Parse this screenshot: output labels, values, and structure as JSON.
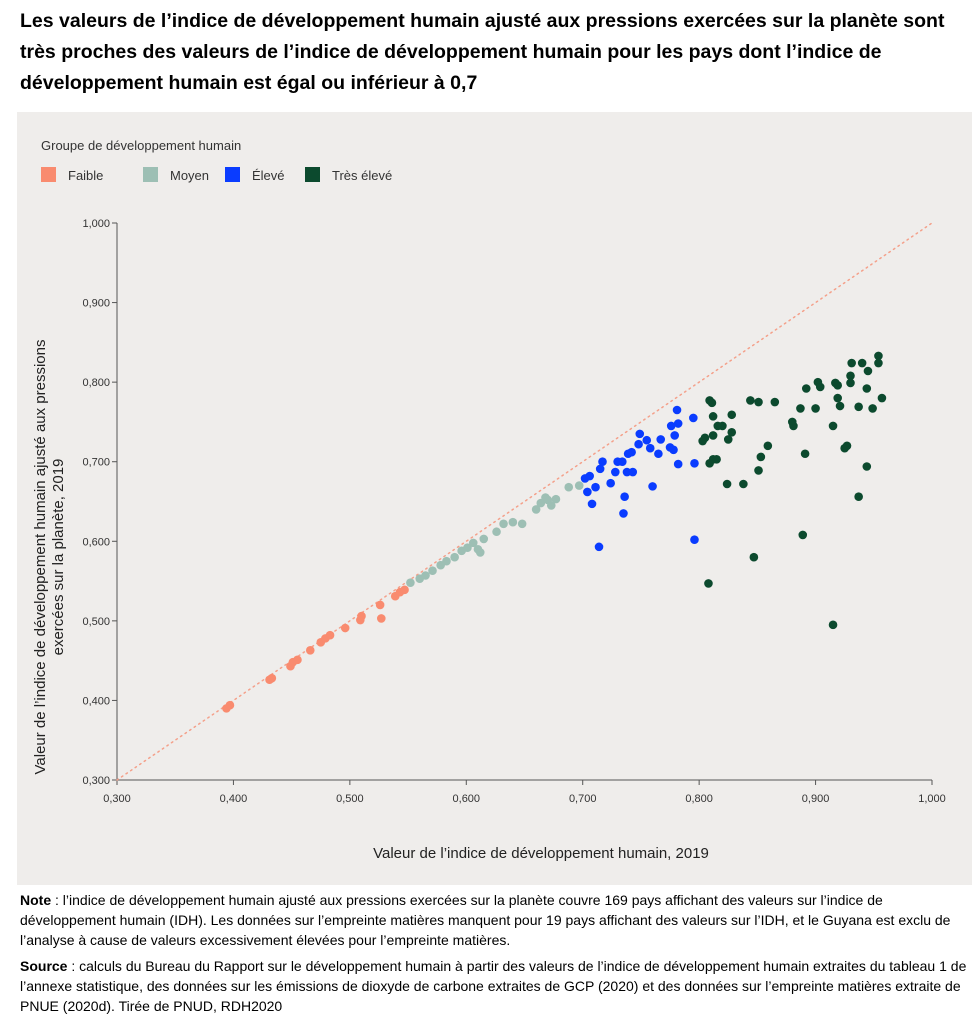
{
  "title": "Les valeurs de l’indice de développement humain ajusté aux pressions exercées sur la planète sont très proches des valeurs de l’indice de développement humain pour les pays dont l’indice de développement humain est égal ou inférieur à 0,7",
  "notes": {
    "note_label": "Note",
    "note_text": " : l’indice de développement humain ajusté aux pressions exercées sur la planète couvre 169 pays affichant des valeurs sur l’indice de développement humain (IDH). Les données sur l’empreinte matières manquent pour 19 pays affichant des valeurs sur l’IDH, et le Guyana est exclu de l’analyse à cause de valeurs excessivement élevées pour l’empreinte matières.",
    "source_label": "Source",
    "source_text": " : calculs du Bureau du Rapport sur le développement humain à partir des valeurs de l’indice de développement humain extraites du tableau 1 de l’annexe statistique, des données sur les émissions de dioxyde de carbone extraites de GCP (2020) et des données sur l’empreinte matières extraite de PNUE (2020d). Tirée de PNUD, RDH2020"
  },
  "chart_data": {
    "type": "scatter",
    "legend_title": "Groupe de développement humain",
    "legend_position": "top-left",
    "xlabel": "Valeur de l’indice de développement humain, 2019",
    "ylabel_lines": [
      "Valeur de l’indice de développement humain ajusté aux pressions",
      "exercées sur la planète, 2019"
    ],
    "xlim": [
      0.3,
      1.0
    ],
    "ylim": [
      0.3,
      1.0
    ],
    "x_ticks": [
      "0,300",
      "0,400",
      "0,500",
      "0,600",
      "0,700",
      "0,800",
      "0,900",
      "1,000"
    ],
    "y_ticks": [
      "0,300",
      "0,400",
      "0,500",
      "0,600",
      "0,700",
      "0,800",
      "0,900",
      "1,000"
    ],
    "grid": false,
    "reference_line": "y = x (dotted)",
    "reference_color": "#f4a08a",
    "series": [
      {
        "name": "Faible",
        "color": "#f98b6f",
        "points": [
          [
            0.394,
            0.39
          ],
          [
            0.397,
            0.394
          ],
          [
            0.431,
            0.426
          ],
          [
            0.433,
            0.428
          ],
          [
            0.449,
            0.443
          ],
          [
            0.451,
            0.448
          ],
          [
            0.455,
            0.451
          ],
          [
            0.466,
            0.463
          ],
          [
            0.475,
            0.473
          ],
          [
            0.479,
            0.478
          ],
          [
            0.483,
            0.482
          ],
          [
            0.496,
            0.491
          ],
          [
            0.509,
            0.501
          ],
          [
            0.51,
            0.506
          ],
          [
            0.527,
            0.503
          ],
          [
            0.526,
            0.52
          ],
          [
            0.539,
            0.531
          ],
          [
            0.543,
            0.536
          ],
          [
            0.547,
            0.539
          ]
        ]
      },
      {
        "name": "Moyen",
        "color": "#9dbfb4",
        "points": [
          [
            0.552,
            0.548
          ],
          [
            0.56,
            0.553
          ],
          [
            0.565,
            0.557
          ],
          [
            0.571,
            0.563
          ],
          [
            0.578,
            0.57
          ],
          [
            0.583,
            0.575
          ],
          [
            0.59,
            0.58
          ],
          [
            0.596,
            0.588
          ],
          [
            0.601,
            0.592
          ],
          [
            0.606,
            0.598
          ],
          [
            0.61,
            0.59
          ],
          [
            0.612,
            0.586
          ],
          [
            0.615,
            0.603
          ],
          [
            0.626,
            0.612
          ],
          [
            0.632,
            0.622
          ],
          [
            0.64,
            0.624
          ],
          [
            0.648,
            0.622
          ],
          [
            0.66,
            0.64
          ],
          [
            0.664,
            0.648
          ],
          [
            0.668,
            0.655
          ],
          [
            0.67,
            0.652
          ],
          [
            0.673,
            0.645
          ],
          [
            0.677,
            0.653
          ],
          [
            0.688,
            0.668
          ],
          [
            0.697,
            0.67
          ]
        ]
      },
      {
        "name": "Élevé",
        "color": "#0a3cff",
        "points": [
          [
            0.781,
            0.765
          ],
          [
            0.795,
            0.755
          ],
          [
            0.776,
            0.745
          ],
          [
            0.782,
            0.748
          ],
          [
            0.779,
            0.733
          ],
          [
            0.749,
            0.735
          ],
          [
            0.755,
            0.727
          ],
          [
            0.767,
            0.728
          ],
          [
            0.748,
            0.722
          ],
          [
            0.758,
            0.717
          ],
          [
            0.775,
            0.718
          ],
          [
            0.778,
            0.715
          ],
          [
            0.765,
            0.71
          ],
          [
            0.742,
            0.712
          ],
          [
            0.739,
            0.71
          ],
          [
            0.782,
            0.697
          ],
          [
            0.796,
            0.698
          ],
          [
            0.717,
            0.7
          ],
          [
            0.73,
            0.7
          ],
          [
            0.734,
            0.7
          ],
          [
            0.715,
            0.691
          ],
          [
            0.728,
            0.687
          ],
          [
            0.738,
            0.687
          ],
          [
            0.743,
            0.687
          ],
          [
            0.706,
            0.682
          ],
          [
            0.702,
            0.679
          ],
          [
            0.711,
            0.668
          ],
          [
            0.724,
            0.673
          ],
          [
            0.76,
            0.669
          ],
          [
            0.704,
            0.662
          ],
          [
            0.736,
            0.656
          ],
          [
            0.708,
            0.647
          ],
          [
            0.735,
            0.635
          ],
          [
            0.796,
            0.602
          ],
          [
            0.714,
            0.593
          ]
        ]
      },
      {
        "name": "Très élevé",
        "color": "#0c4a2e",
        "points": [
          [
            0.954,
            0.833
          ],
          [
            0.954,
            0.824
          ],
          [
            0.931,
            0.824
          ],
          [
            0.94,
            0.824
          ],
          [
            0.945,
            0.814
          ],
          [
            0.93,
            0.808
          ],
          [
            0.93,
            0.799
          ],
          [
            0.917,
            0.799
          ],
          [
            0.919,
            0.796
          ],
          [
            0.902,
            0.8
          ],
          [
            0.904,
            0.794
          ],
          [
            0.892,
            0.792
          ],
          [
            0.944,
            0.792
          ],
          [
            0.957,
            0.78
          ],
          [
            0.919,
            0.78
          ],
          [
            0.921,
            0.77
          ],
          [
            0.887,
            0.767
          ],
          [
            0.9,
            0.767
          ],
          [
            0.937,
            0.769
          ],
          [
            0.949,
            0.767
          ],
          [
            0.88,
            0.75
          ],
          [
            0.881,
            0.745
          ],
          [
            0.915,
            0.745
          ],
          [
            0.927,
            0.72
          ],
          [
            0.925,
            0.717
          ],
          [
            0.891,
            0.71
          ],
          [
            0.944,
            0.694
          ],
          [
            0.937,
            0.656
          ],
          [
            0.811,
            0.774
          ],
          [
            0.828,
            0.759
          ],
          [
            0.812,
            0.757
          ],
          [
            0.816,
            0.745
          ],
          [
            0.82,
            0.745
          ],
          [
            0.828,
            0.737
          ],
          [
            0.812,
            0.733
          ],
          [
            0.805,
            0.73
          ],
          [
            0.825,
            0.728
          ],
          [
            0.803,
            0.726
          ],
          [
            0.859,
            0.72
          ],
          [
            0.812,
            0.703
          ],
          [
            0.815,
            0.703
          ],
          [
            0.809,
            0.698
          ],
          [
            0.853,
            0.706
          ],
          [
            0.851,
            0.689
          ],
          [
            0.824,
            0.672
          ],
          [
            0.838,
            0.672
          ],
          [
            0.889,
            0.608
          ],
          [
            0.847,
            0.58
          ],
          [
            0.844,
            0.777
          ],
          [
            0.851,
            0.775
          ],
          [
            0.865,
            0.775
          ],
          [
            0.809,
            0.777
          ],
          [
            0.808,
            0.547
          ],
          [
            0.915,
            0.495
          ]
        ]
      }
    ]
  }
}
